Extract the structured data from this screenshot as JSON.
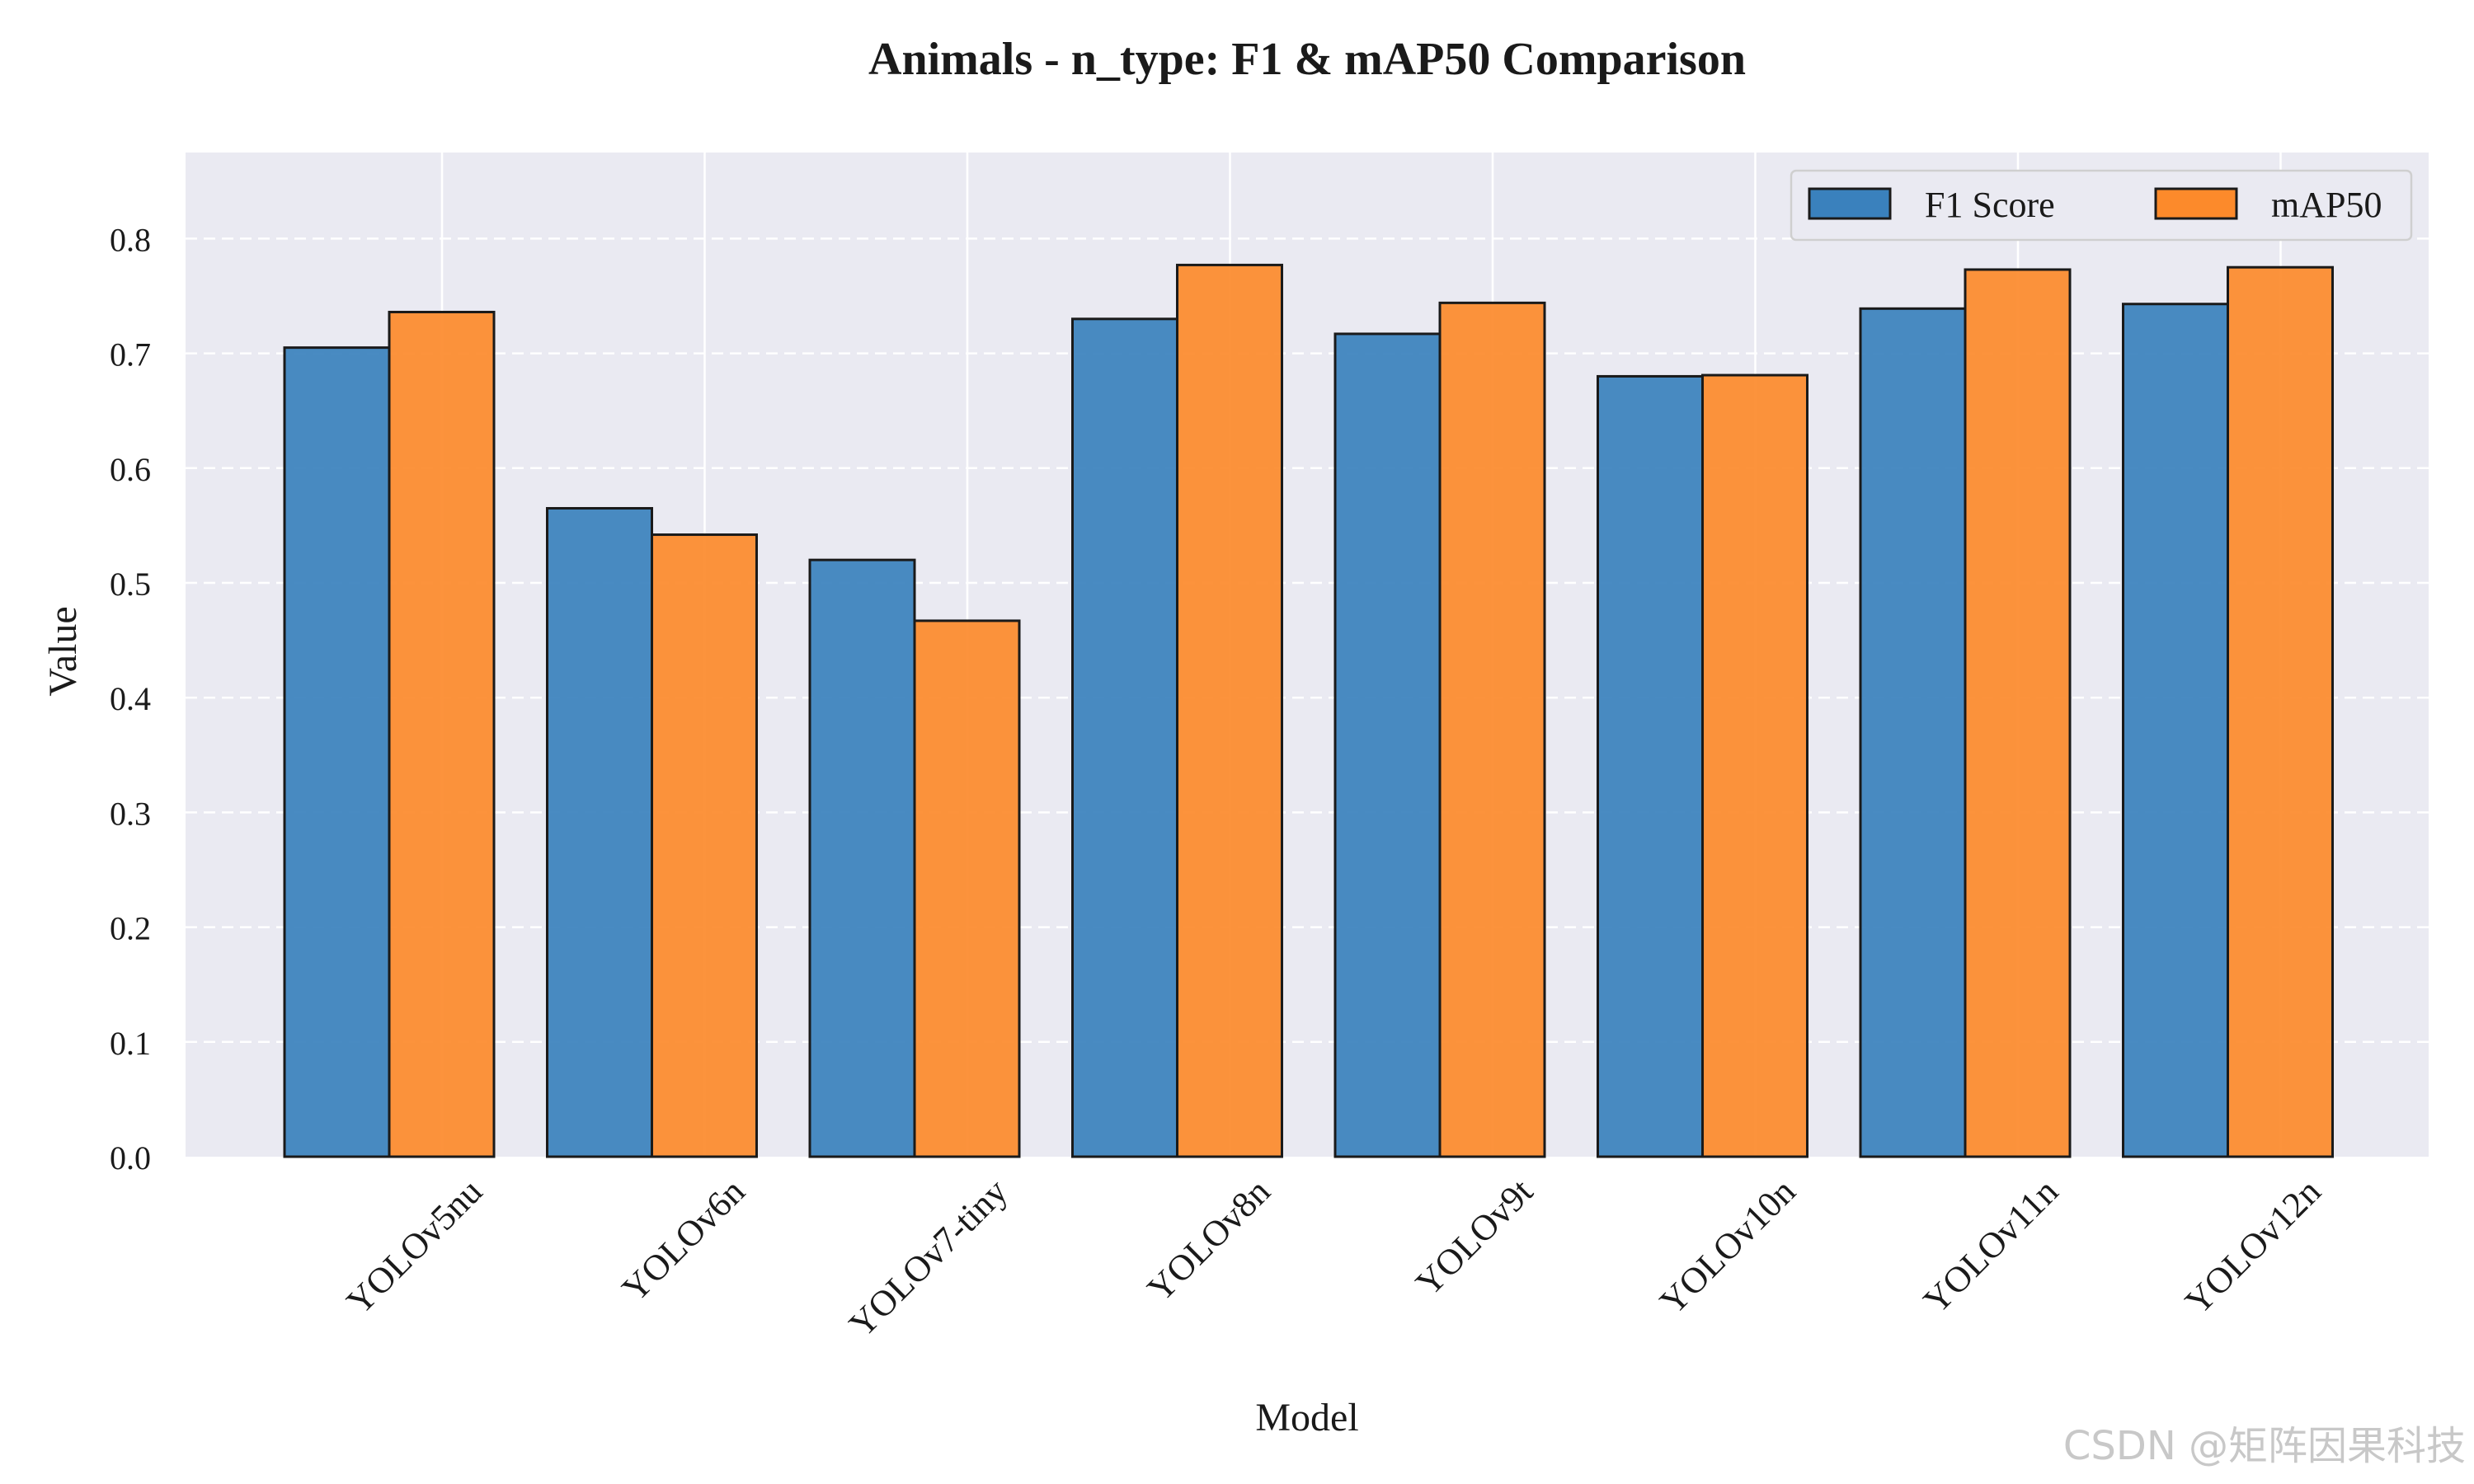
{
  "chart_data": {
    "type": "bar",
    "title": "Animals - n_type: F1 & mAP50 Comparison",
    "xlabel": "Model",
    "ylabel": "Value",
    "categories": [
      "YOLOv5nu",
      "YOLOv6n",
      "YOLOv7-tiny",
      "YOLOv8n",
      "YOLOv9t",
      "YOLOv10n",
      "YOLOv11n",
      "YOLOv12n"
    ],
    "series": [
      {
        "name": "F1 Score",
        "color": "#3a81bd",
        "values": [
          0.705,
          0.565,
          0.52,
          0.73,
          0.717,
          0.68,
          0.739,
          0.743
        ]
      },
      {
        "name": "mAP50",
        "color": "#fc8a2b",
        "values": [
          0.736,
          0.542,
          0.467,
          0.777,
          0.744,
          0.681,
          0.773,
          0.775
        ]
      }
    ],
    "ylim": [
      0,
      0.875
    ],
    "yticks": [
      "0.0",
      "0.1",
      "0.2",
      "0.3",
      "0.4",
      "0.5",
      "0.6",
      "0.7",
      "0.8"
    ],
    "grid": true,
    "legend_position": "top-right",
    "background_color": "#eaeaf2"
  },
  "watermark": "CSDN @矩阵因果科技"
}
